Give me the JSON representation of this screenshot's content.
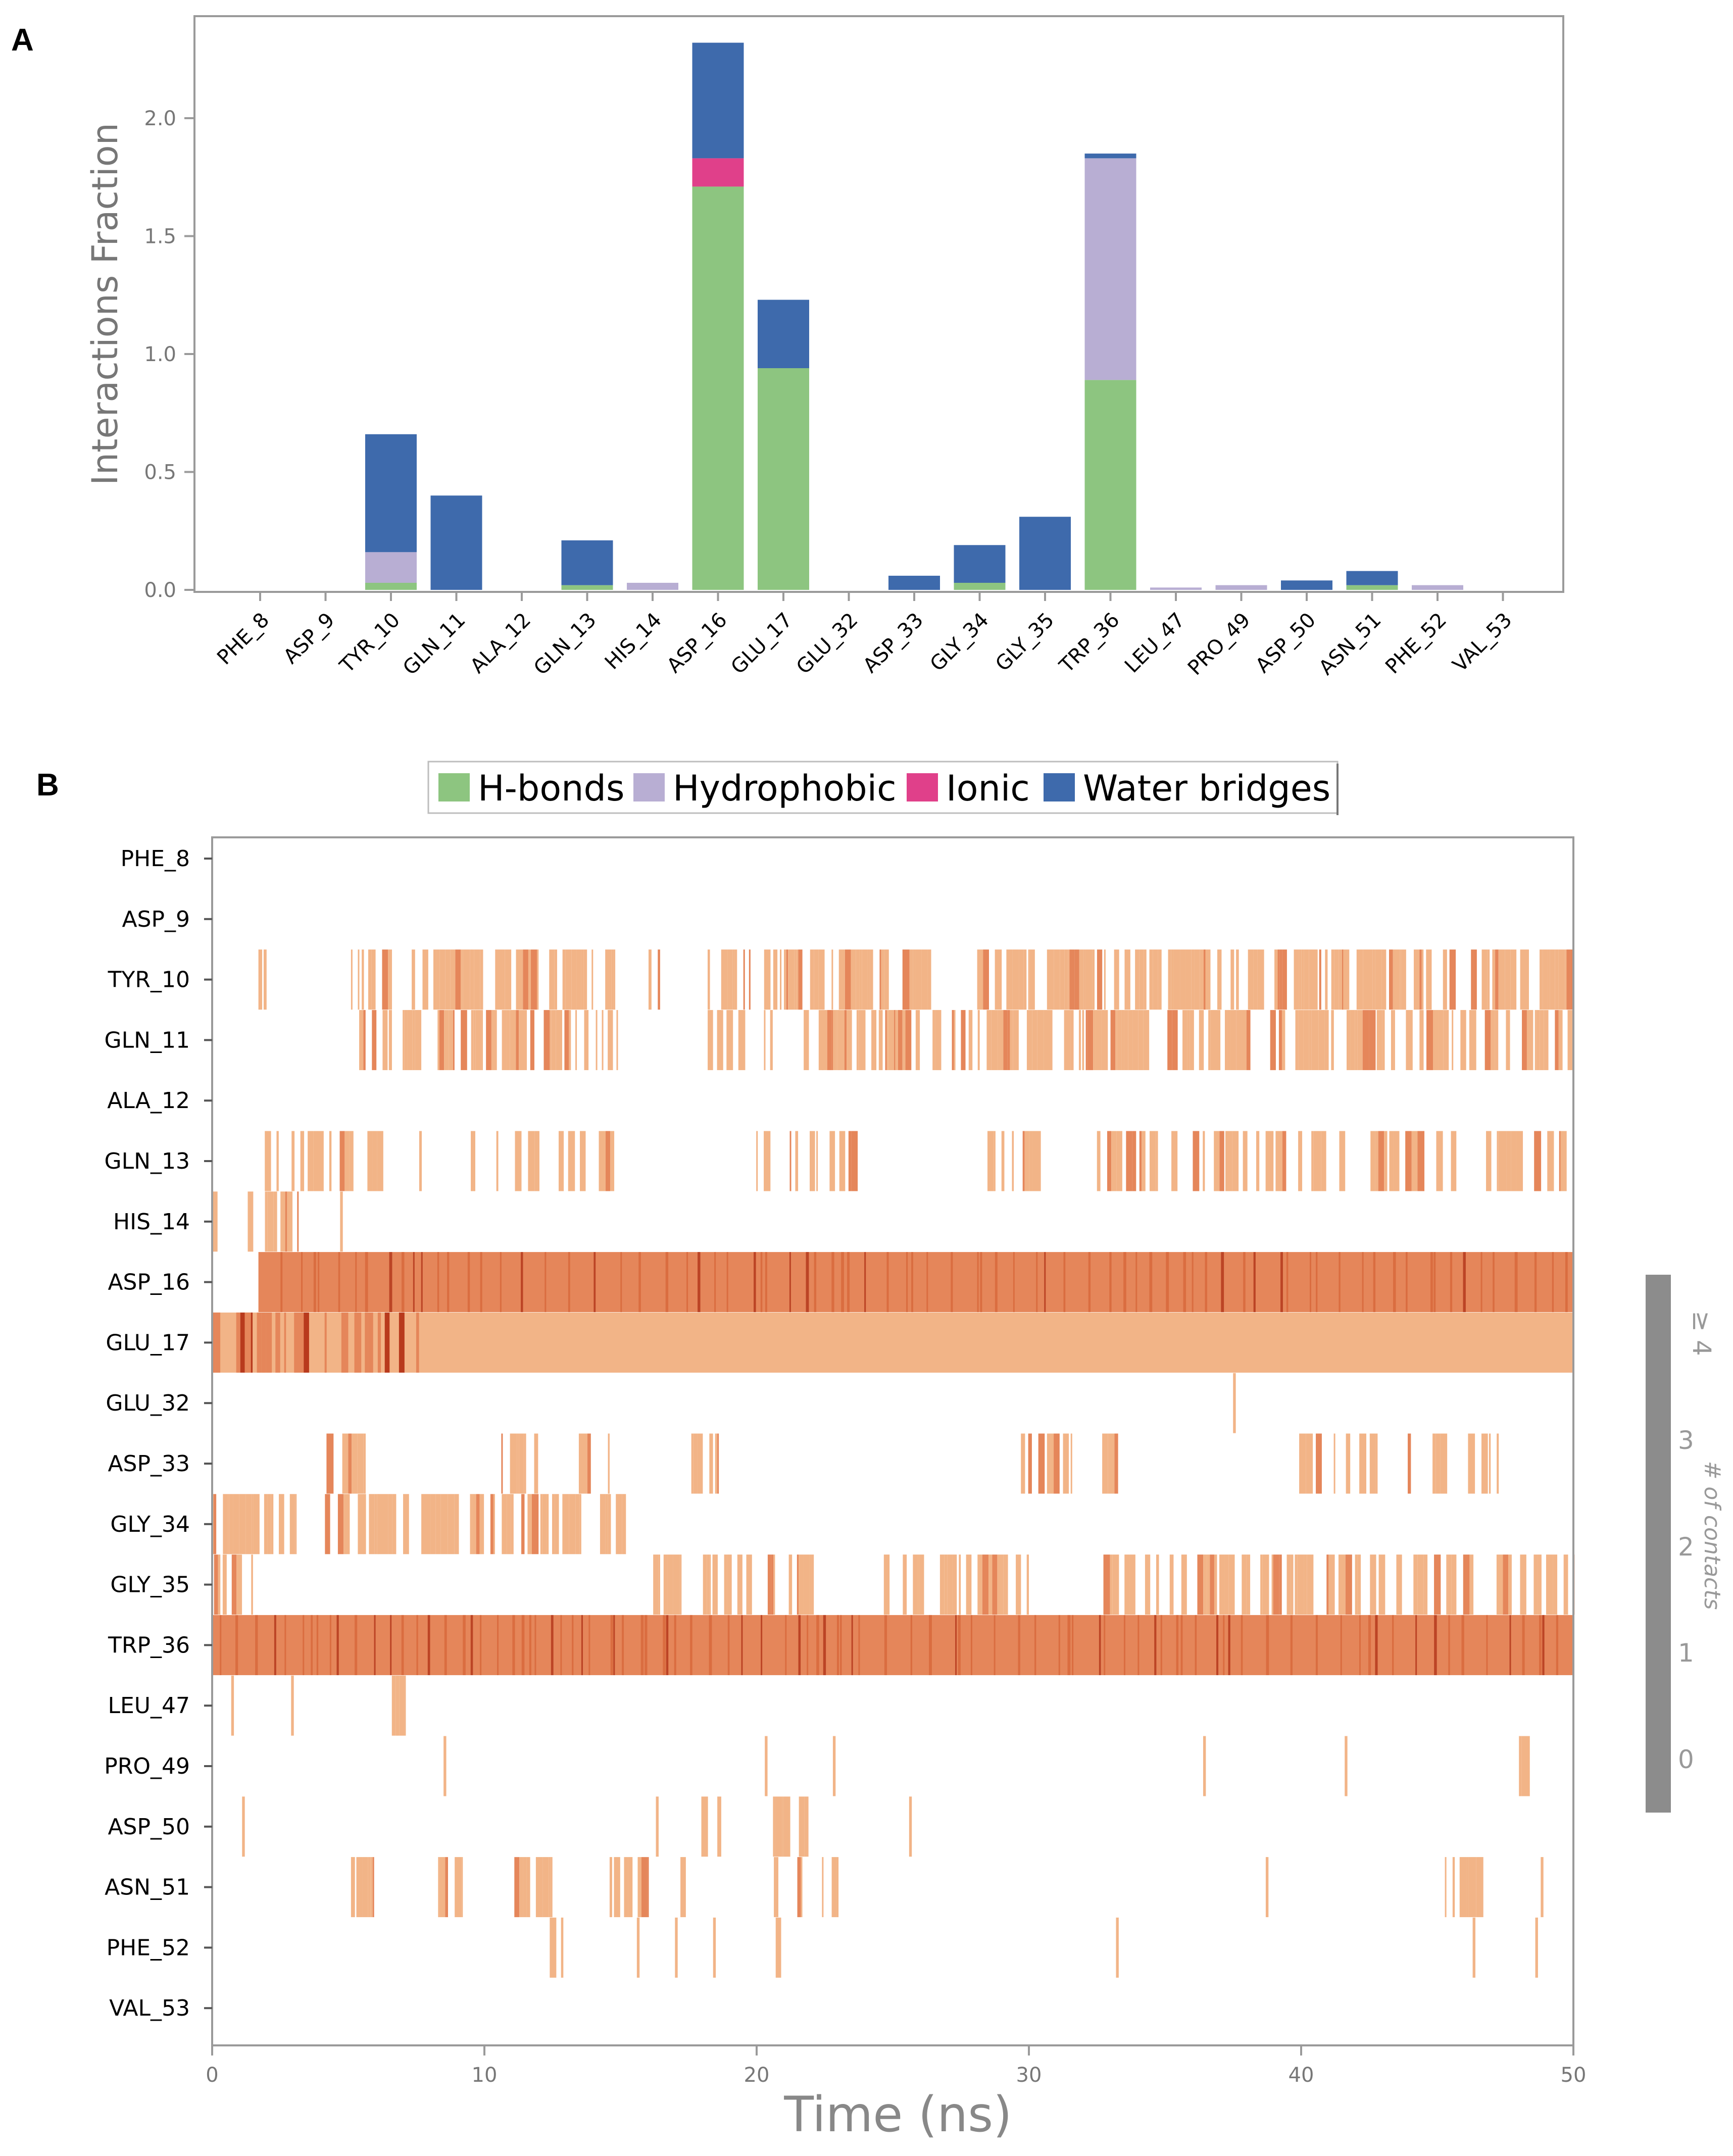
{
  "chart_data": [
    {
      "panel": "A",
      "type": "bar",
      "stacked": true,
      "ylabel": "Interactions Fraction",
      "ylim": [
        0,
        2.4
      ],
      "yticks": [
        "0.0",
        "0.5",
        "1.0",
        "1.5",
        "2.0"
      ],
      "grid": false,
      "categories": [
        "PHE_8",
        "ASP_9",
        "TYR_10",
        "GLN_11",
        "ALA_12",
        "GLN_13",
        "HIS_14",
        "ASP_16",
        "GLU_17",
        "GLU_32",
        "ASP_33",
        "GLY_34",
        "GLY_35",
        "TRP_36",
        "LEU_47",
        "PRO_49",
        "ASP_50",
        "ASN_51",
        "PHE_52",
        "VAL_53"
      ],
      "series": [
        {
          "name": "H-bonds",
          "color": "#8dc580",
          "values": [
            0,
            0,
            0.03,
            0,
            0,
            0.02,
            0,
            1.71,
            0.94,
            0,
            0,
            0.03,
            0,
            0.89,
            0,
            0,
            0,
            0.02,
            0,
            0
          ]
        },
        {
          "name": "Hydrophobic",
          "color": "#b8aed3",
          "values": [
            0,
            0,
            0.13,
            0,
            0,
            0,
            0.03,
            0,
            0,
            0,
            0,
            0,
            0,
            0.94,
            0.01,
            0.02,
            0,
            0,
            0.02,
            0
          ]
        },
        {
          "name": "Ionic",
          "color": "#e0408a",
          "values": [
            0,
            0,
            0,
            0,
            0,
            0,
            0,
            0.12,
            0,
            0,
            0,
            0,
            0,
            0,
            0,
            0,
            0,
            0,
            0,
            0
          ]
        },
        {
          "name": "Water bridges",
          "color": "#3e6aac",
          "values": [
            0,
            0,
            0.5,
            0.4,
            0,
            0.19,
            0,
            0.49,
            0.29,
            0,
            0.06,
            0.16,
            0.31,
            0.02,
            0,
            0,
            0.04,
            0.06,
            0,
            0
          ]
        }
      ],
      "legend": {
        "placement": "bottom-center",
        "entries": [
          "H-bonds",
          "Hydrophobic",
          "Ionic",
          "Water bridges"
        ]
      }
    },
    {
      "panel": "B",
      "type": "heatmap",
      "xlabel": "Time (ns)",
      "xlim": [
        0,
        50
      ],
      "xticks": [
        "0",
        "10",
        "20",
        "30",
        "40",
        "50"
      ],
      "rows": [
        "PHE_8",
        "ASP_9",
        "TYR_10",
        "GLN_11",
        "ALA_12",
        "GLN_13",
        "HIS_14",
        "ASP_16",
        "GLU_17",
        "GLU_32",
        "ASP_33",
        "GLY_34",
        "GLY_35",
        "TRP_36",
        "LEU_47",
        "PRO_49",
        "ASP_50",
        "ASN_51",
        "PHE_52",
        "VAL_53"
      ],
      "colorbar": {
        "title": "# of contacts",
        "ticks": [
          "0",
          "1",
          "2",
          "3",
          "≥ 4"
        ]
      },
      "activity": [
        {
          "row": "PHE_8",
          "segments": []
        },
        {
          "row": "ASP_9",
          "segments": []
        },
        {
          "row": "TYR_10",
          "segments": [
            [
              1.7,
              2.0,
              1,
              0.55
            ],
            [
              5.1,
              14.8,
              1,
              0.6
            ],
            [
              15.8,
              16.5,
              1,
              0.4
            ],
            [
              18.2,
              26.6,
              1,
              0.6
            ],
            [
              28.1,
              50,
              1,
              0.7
            ]
          ]
        },
        {
          "row": "GLN_11",
          "segments": [
            [
              5.4,
              14.9,
              1,
              0.65
            ],
            [
              18.0,
              23.0,
              1,
              0.4
            ],
            [
              22.4,
              50,
              1,
              0.7
            ]
          ]
        },
        {
          "row": "ALA_12",
          "segments": []
        },
        {
          "row": "GLN_13",
          "segments": [
            [
              1.7,
              7.7,
              1,
              0.4
            ],
            [
              9.5,
              15.2,
              1,
              0.4
            ],
            [
              19.2,
              24.3,
              1,
              0.25
            ],
            [
              28.2,
              31.1,
              1,
              0.5
            ],
            [
              32.5,
              50,
              1,
              0.45
            ]
          ]
        },
        {
          "row": "HIS_14",
          "segments": [
            [
              0,
              0.2,
              1,
              0.5
            ],
            [
              1.2,
              3.2,
              1,
              0.45
            ],
            [
              4.7,
              4.8,
              1,
              0.3
            ]
          ]
        },
        {
          "row": "ASP_16",
          "segments": [
            [
              1.7,
              50,
              2,
              1.0
            ]
          ]
        },
        {
          "row": "GLU_17",
          "segments": [
            [
              0,
              50,
              1,
              1.0
            ],
            [
              0,
              7.6,
              2,
              0.5
            ]
          ]
        },
        {
          "row": "GLU_32",
          "segments": [
            [
              37.5,
              37.6,
              1,
              1.0
            ]
          ]
        },
        {
          "row": "ASP_33",
          "segments": [
            [
              4.2,
              6.5,
              1,
              0.45
            ],
            [
              8.3,
              14.6,
              1,
              0.25
            ],
            [
              17.6,
              18.6,
              1,
              0.5
            ],
            [
              29.5,
              33.5,
              1,
              0.3
            ],
            [
              39.7,
              47.3,
              1,
              0.4
            ]
          ]
        },
        {
          "row": "GLY_34",
          "segments": [
            [
              0,
              3.1,
              1,
              0.8
            ],
            [
              3.9,
              15.2,
              1,
              0.65
            ]
          ]
        },
        {
          "row": "GLY_35",
          "segments": [
            [
              0,
              1.5,
              1,
              0.5
            ],
            [
              16.2,
              22.1,
              1,
              0.55
            ],
            [
              24.5,
              30.0,
              1,
              0.5
            ],
            [
              32.5,
              50,
              1,
              0.6
            ]
          ]
        },
        {
          "row": "TRP_36",
          "segments": [
            [
              0,
              50,
              2,
              1.0
            ]
          ]
        },
        {
          "row": "LEU_47",
          "segments": [
            [
              0.7,
              0.8,
              1,
              1.0
            ],
            [
              2.9,
              3.0,
              1,
              1.0
            ],
            [
              6.6,
              7.1,
              1,
              0.8
            ]
          ]
        },
        {
          "row": "PRO_49",
          "segments": [
            [
              8.5,
              8.6,
              1,
              1.0
            ],
            [
              20.3,
              20.4,
              1,
              1.0
            ],
            [
              22.8,
              22.9,
              1,
              1.0
            ],
            [
              36.4,
              36.5,
              1,
              1.0
            ],
            [
              41.6,
              41.7,
              1,
              1.0
            ],
            [
              48.0,
              48.4,
              1,
              0.9
            ]
          ]
        },
        {
          "row": "ASP_50",
          "segments": [
            [
              1.1,
              1.2,
              1,
              1.0
            ],
            [
              16.3,
              16.4,
              1,
              1.0
            ],
            [
              17.8,
              18.7,
              1,
              0.7
            ],
            [
              20.6,
              22.0,
              1,
              0.6
            ],
            [
              25.6,
              25.7,
              1,
              1.0
            ]
          ]
        },
        {
          "row": "ASN_51",
          "segments": [
            [
              5.1,
              5.9,
              1,
              0.8
            ],
            [
              8.3,
              9.2,
              1,
              0.8
            ],
            [
              11.1,
              12.5,
              1,
              0.6
            ],
            [
              14.6,
              16.0,
              1,
              0.7
            ],
            [
              17.2,
              17.4,
              1,
              1.0
            ],
            [
              20.5,
              21.8,
              1,
              0.6
            ],
            [
              22.4,
              23.4,
              1,
              0.6
            ],
            [
              38.7,
              38.8,
              1,
              1.0
            ],
            [
              45.2,
              47.0,
              1,
              0.7
            ],
            [
              48.8,
              48.9,
              1,
              1.0
            ]
          ]
        },
        {
          "row": "PHE_52",
          "segments": [
            [
              12.4,
              12.9,
              1,
              0.8
            ],
            [
              15.6,
              15.7,
              1,
              1.0
            ],
            [
              17.0,
              17.1,
              1,
              1.0
            ],
            [
              18.4,
              18.5,
              1,
              1.0
            ],
            [
              20.7,
              20.9,
              1,
              1.0
            ],
            [
              33.2,
              33.3,
              1,
              1.0
            ],
            [
              46.3,
              46.4,
              1,
              1.0
            ],
            [
              48.6,
              48.7,
              1,
              1.0
            ]
          ]
        },
        {
          "row": "VAL_53",
          "segments": []
        }
      ]
    }
  ],
  "panel_labels": {
    "a": "A",
    "b": "B"
  }
}
